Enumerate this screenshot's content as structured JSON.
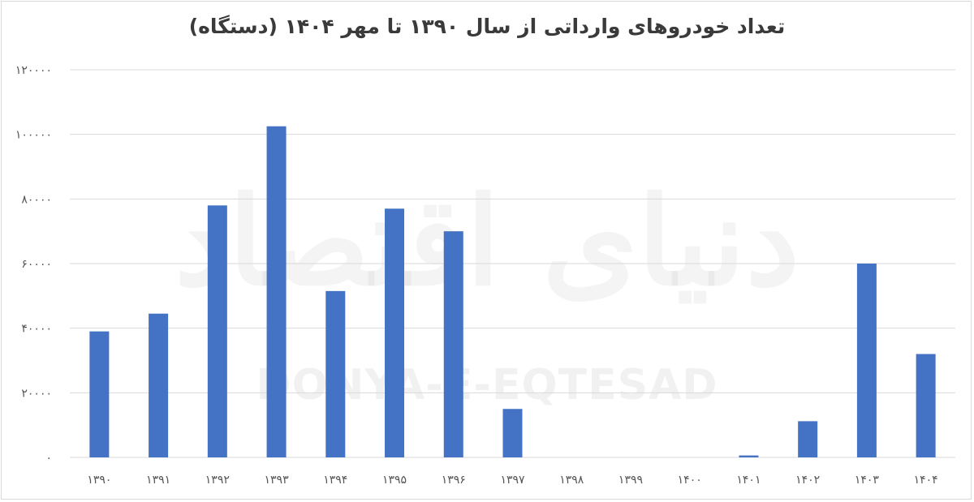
{
  "chart_data": {
    "type": "bar",
    "title": "تعداد خودروهای وارداتی از سال ۱۳۹۰ تا مهر ۱۴۰۴ (دستگاه)",
    "categories": [
      "۱۳۹۰",
      "۱۳۹۱",
      "۱۳۹۲",
      "۱۳۹۳",
      "۱۳۹۴",
      "۱۳۹۵",
      "۱۳۹۶",
      "۱۳۹۷",
      "۱۳۹۸",
      "۱۳۹۹",
      "۱۴۰۰",
      "۱۴۰۱",
      "۱۴۰۲",
      "۱۴۰۳",
      "۱۴۰۴"
    ],
    "values": [
      39000,
      44500,
      78000,
      102500,
      51500,
      77000,
      70000,
      15000,
      0,
      0,
      0,
      600,
      11200,
      60000,
      32000
    ],
    "ylim": [
      0,
      120000
    ],
    "yticks": [
      0,
      20000,
      40000,
      60000,
      80000,
      100000,
      120000
    ],
    "ytick_labels": [
      "۰",
      "۲۰۰۰۰",
      "۴۰۰۰۰",
      "۶۰۰۰۰",
      "۸۰۰۰۰",
      "۱۰۰۰۰۰",
      "۱۲۰۰۰۰"
    ],
    "grid": true,
    "legend": "none",
    "bar_color": "#4472c4",
    "grid_color": "#d9d9d9"
  },
  "watermark": {
    "latin": "DONYA-E-EQTESAD",
    "persian": "دنیای اقتصاد"
  }
}
